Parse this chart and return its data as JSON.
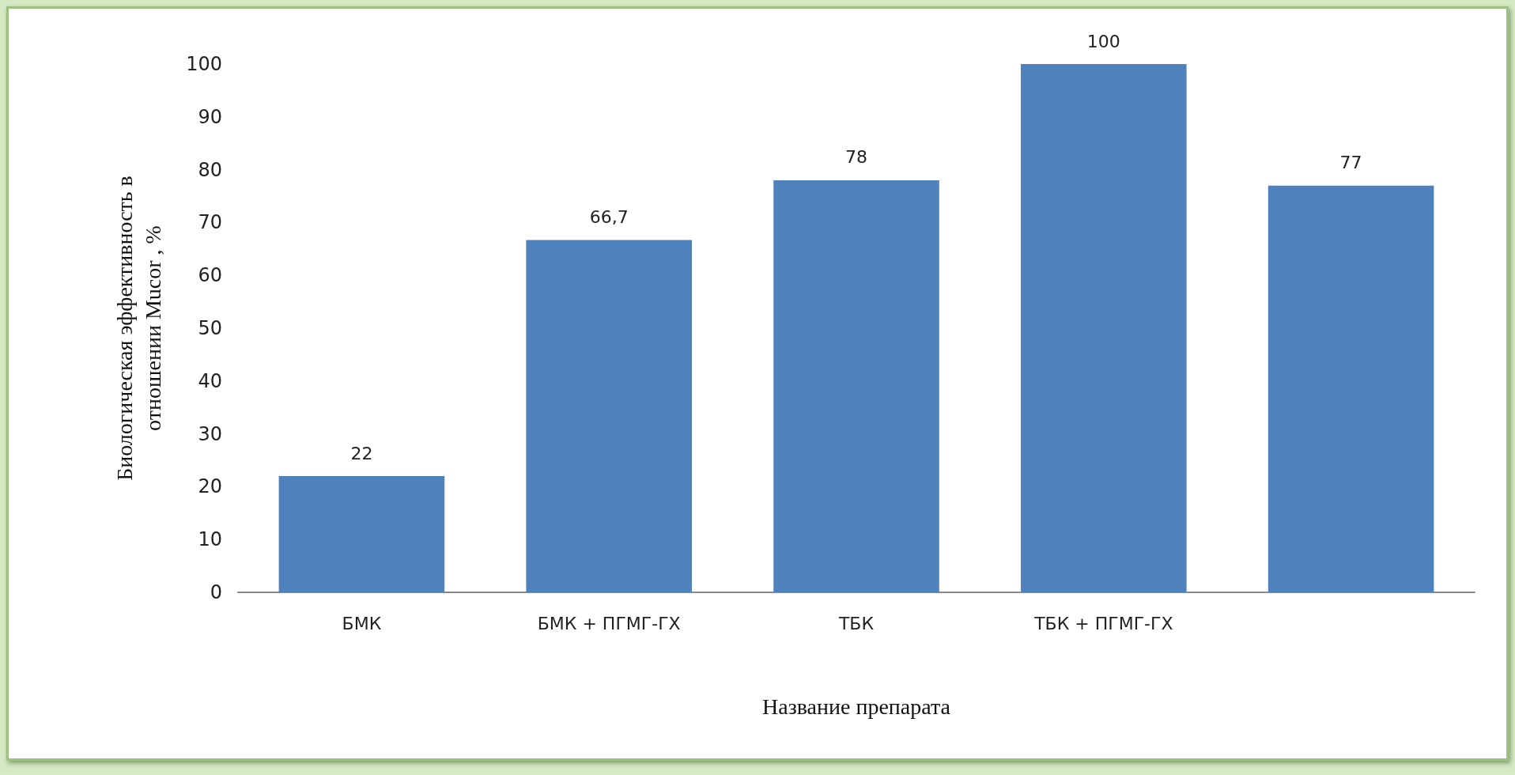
{
  "chart_data": {
    "type": "bar",
    "xlabel": "Название препарата",
    "ylabel": "Биологическая эффективность в\nотношении Mucor , %",
    "categories": [
      "БМК",
      "БМК + ПГМГ-ГХ",
      "ТБК",
      "ТБК + ПГМГ-ГХ",
      null
    ],
    "values": [
      22,
      66.7,
      78,
      100,
      77
    ],
    "value_labels": [
      "22",
      "66,7",
      "78",
      "100",
      "77"
    ],
    "color": "#4f81bd",
    "ylim": [
      0,
      100
    ],
    "yticks": [
      0,
      10,
      20,
      30,
      40,
      50,
      60,
      70,
      80,
      90,
      100
    ],
    "grid": false
  }
}
